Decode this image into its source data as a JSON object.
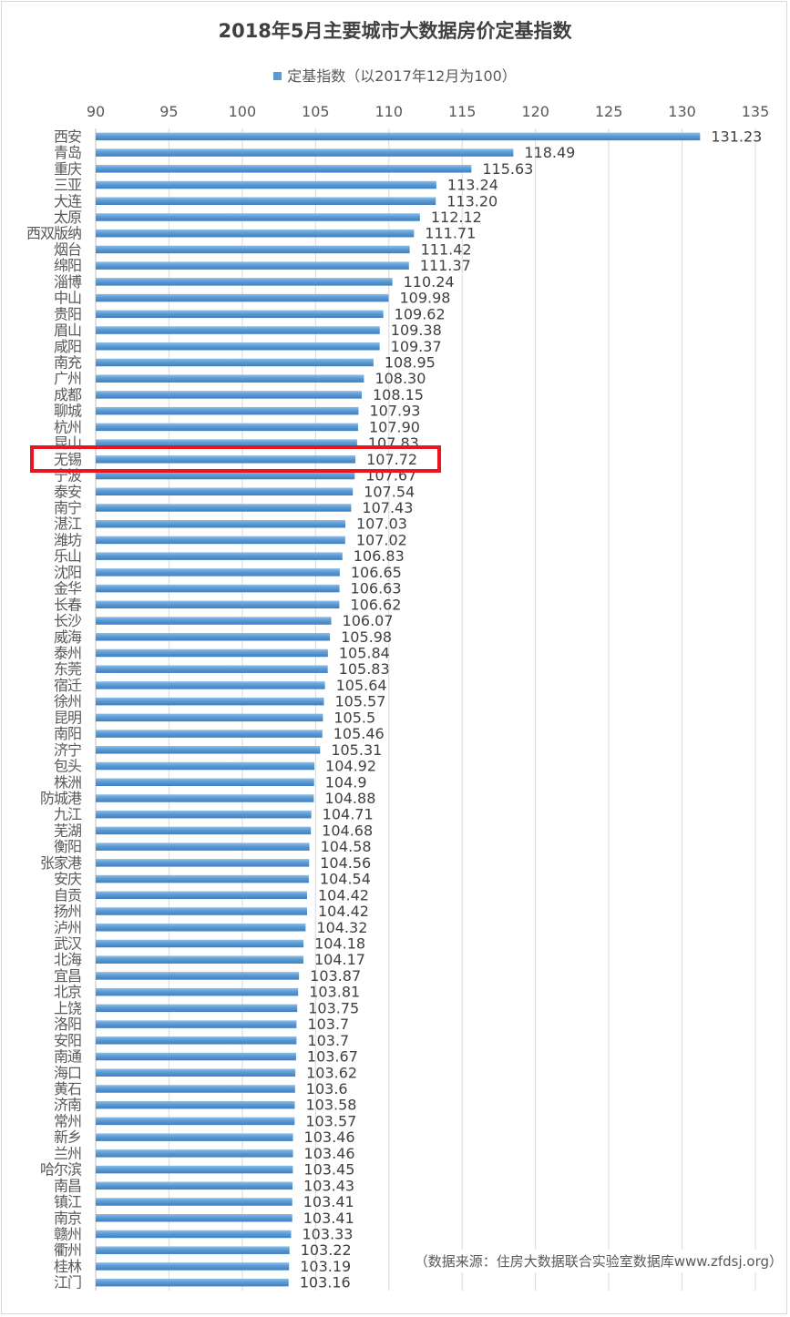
{
  "chart_data": {
    "type": "bar",
    "orientation": "horizontal",
    "title": "2018年5月主要城市大数据房价定基指数",
    "legend": "定基指数（以2017年12月为100）",
    "legend_position": "top",
    "source_note": "（数据来源：住房大数据联合实验室数据库www.zfdsj.org）",
    "xlim": [
      90,
      135
    ],
    "x_ticks": [
      "90",
      "95",
      "100",
      "105",
      "110",
      "115",
      "120",
      "125",
      "130",
      "135"
    ],
    "x_tick_values": [
      90,
      95,
      100,
      105,
      110,
      115,
      120,
      125,
      130,
      135
    ],
    "grid": true,
    "bar_color": "#5b9bd5",
    "highlight_color": "#e8171f",
    "highlight_category": "无锡",
    "categories": [
      "西安",
      "青岛",
      "重庆",
      "三亚",
      "大连",
      "太原",
      "西双版纳",
      "烟台",
      "绵阳",
      "淄博",
      "中山",
      "贵阳",
      "眉山",
      "咸阳",
      "南充",
      "广州",
      "成都",
      "聊城",
      "杭州",
      "昆山",
      "无锡",
      "宁波",
      "泰安",
      "南宁",
      "湛江",
      "潍坊",
      "乐山",
      "沈阳",
      "金华",
      "长春",
      "长沙",
      "威海",
      "泰州",
      "东莞",
      "宿迁",
      "徐州",
      "昆明",
      "南阳",
      "济宁",
      "包头",
      "株洲",
      "防城港",
      "九江",
      "芜湖",
      "衡阳",
      "张家港",
      "安庆",
      "自贡",
      "扬州",
      "泸州",
      "武汉",
      "北海",
      "宜昌",
      "北京",
      "上饶",
      "洛阳",
      "安阳",
      "南通",
      "海口",
      "黄石",
      "济南",
      "常州",
      "新乡",
      "兰州",
      "哈尔滨",
      "南昌",
      "镇江",
      "南京",
      "赣州",
      "衢州",
      "桂林",
      "江门"
    ],
    "values": [
      131.23,
      118.49,
      115.63,
      113.24,
      113.2,
      112.12,
      111.71,
      111.42,
      111.37,
      110.24,
      109.98,
      109.62,
      109.38,
      109.37,
      108.95,
      108.3,
      108.15,
      107.93,
      107.9,
      107.83,
      107.72,
      107.67,
      107.54,
      107.43,
      107.03,
      107.02,
      106.83,
      106.65,
      106.63,
      106.62,
      106.07,
      105.98,
      105.84,
      105.83,
      105.64,
      105.57,
      105.5,
      105.46,
      105.31,
      104.92,
      104.9,
      104.88,
      104.71,
      104.68,
      104.58,
      104.56,
      104.54,
      104.42,
      104.42,
      104.32,
      104.18,
      104.17,
      103.87,
      103.81,
      103.75,
      103.7,
      103.7,
      103.67,
      103.62,
      103.6,
      103.58,
      103.57,
      103.46,
      103.46,
      103.45,
      103.43,
      103.41,
      103.41,
      103.33,
      103.22,
      103.19,
      103.16
    ],
    "value_labels": [
      "131.23",
      "118.49",
      "115.63",
      "113.24",
      "113.20",
      "112.12",
      "111.71",
      "111.42",
      "111.37",
      "110.24",
      "109.98",
      "109.62",
      "109.38",
      "109.37",
      "108.95",
      "108.30",
      "108.15",
      "107.93",
      "107.90",
      "107.83",
      "107.72",
      "107.67",
      "107.54",
      "107.43",
      "107.03",
      "107.02",
      "106.83",
      "106.65",
      "106.63",
      "106.62",
      "106.07",
      "105.98",
      "105.84",
      "105.83",
      "105.64",
      "105.57",
      "105.5",
      "105.46",
      "105.31",
      "104.92",
      "104.9",
      "104.88",
      "104.71",
      "104.68",
      "104.58",
      "104.56",
      "104.54",
      "104.42",
      "104.42",
      "104.32",
      "104.18",
      "104.17",
      "103.87",
      "103.81",
      "103.75",
      "103.7",
      "103.7",
      "103.67",
      "103.62",
      "103.6",
      "103.58",
      "103.57",
      "103.46",
      "103.46",
      "103.45",
      "103.43",
      "103.41",
      "103.41",
      "103.33",
      "103.22",
      "103.19",
      "103.16"
    ]
  }
}
